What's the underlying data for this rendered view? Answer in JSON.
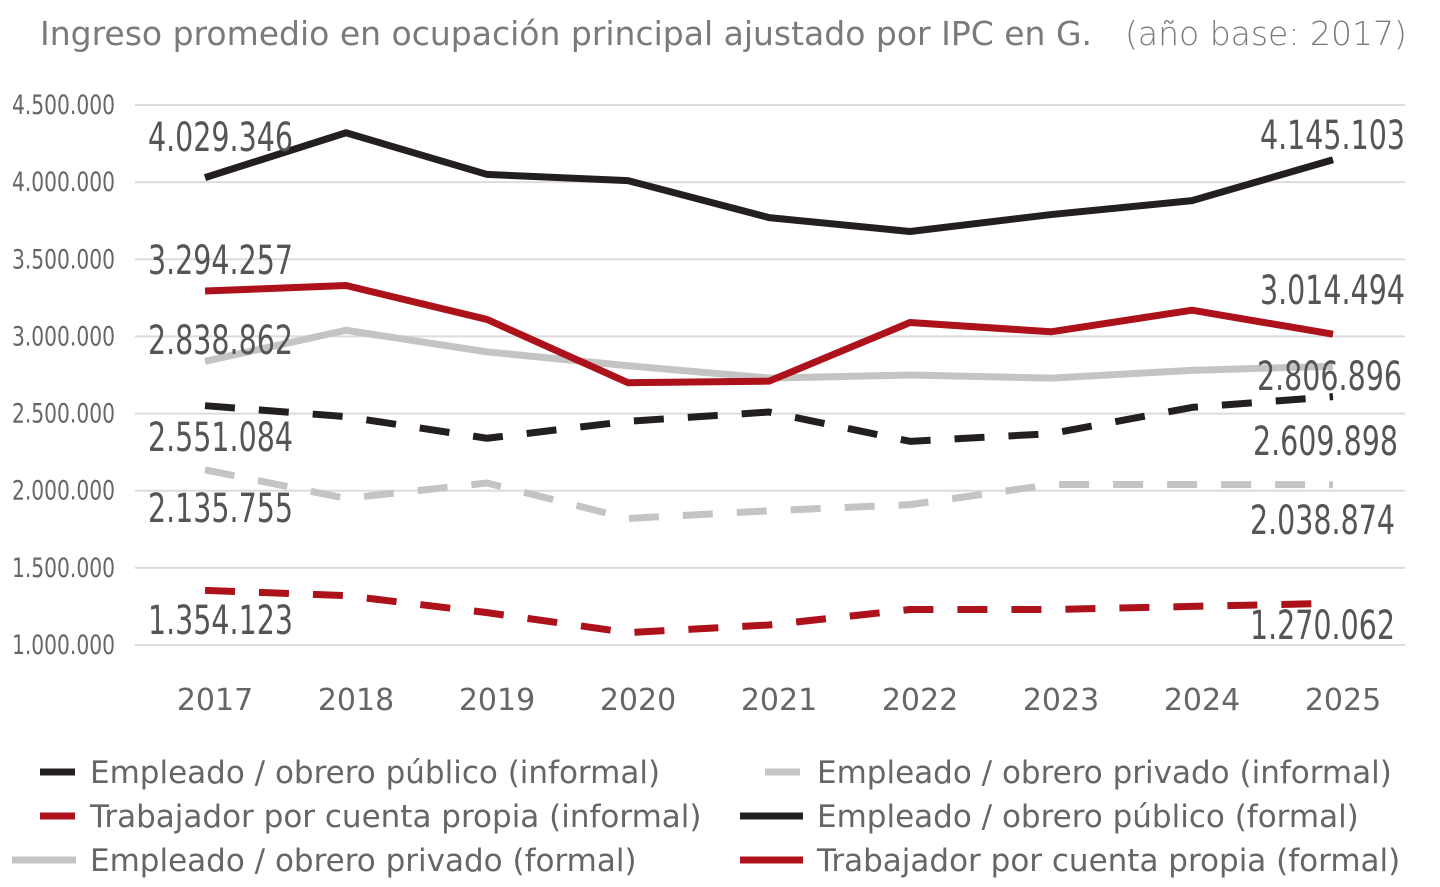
{
  "chart_data": {
    "type": "line",
    "title": "Ingreso promedio en ocupación principal ajustado por IPC en G.",
    "subtitle": "(año base: 2017)",
    "xlabel": "",
    "ylabel": "",
    "x": [
      "2017",
      "2018",
      "2019",
      "2020",
      "2021",
      "2022",
      "2023",
      "2024",
      "2025"
    ],
    "ylim": [
      1000000,
      4500000
    ],
    "yticks": [
      1000000,
      1500000,
      2000000,
      2500000,
      3000000,
      3500000,
      4000000,
      4500000
    ],
    "ytick_labels": [
      "1.000.000",
      "1.500.000",
      "2.000.000",
      "2.500.000",
      "3.000.000",
      "3.500.000",
      "4.000.000",
      "4.500.000"
    ],
    "grid": "horizontal",
    "legend_placement": "bottom",
    "series": [
      {
        "name": "Empleado / obrero público (informal)",
        "color": "#231f20",
        "dashed": true,
        "values": [
          2551084,
          2480000,
          2340000,
          2450000,
          2510000,
          2320000,
          2370000,
          2540000,
          2609898
        ],
        "first_label": "2.551.084",
        "last_label": "2.609.898"
      },
      {
        "name": "Empleado / obrero privado (informal)",
        "color": "#c4c4c4",
        "dashed": true,
        "values": [
          2135755,
          1950000,
          2050000,
          1820000,
          1870000,
          1910000,
          2040000,
          2040000,
          2038874
        ],
        "first_label": "2.135.755",
        "last_label": "2.038.874"
      },
      {
        "name": "Trabajador por cuenta propia (informal)",
        "color": "#ad111a",
        "dashed": true,
        "values": [
          1354123,
          1320000,
          1210000,
          1080000,
          1130000,
          1230000,
          1230000,
          1250000,
          1270062
        ],
        "first_label": "1.354.123",
        "last_label": "1.270.062"
      },
      {
        "name": "Empleado / obrero público (formal)",
        "color": "#231f20",
        "dashed": false,
        "values": [
          4029346,
          4320000,
          4050000,
          4010000,
          3770000,
          3680000,
          3790000,
          3880000,
          4145103
        ],
        "first_label": "4.029.346",
        "last_label": "4.145.103"
      },
      {
        "name": "Empleado / obrero privado (formal)",
        "color": "#c4c4c4",
        "dashed": false,
        "values": [
          2838862,
          3040000,
          2900000,
          2810000,
          2730000,
          2750000,
          2730000,
          2780000,
          2806896
        ],
        "first_label": "2.838.862",
        "last_label": "2.806.896"
      },
      {
        "name": "Trabajador por cuenta propia (formal)",
        "color": "#ad111a",
        "dashed": false,
        "values": [
          3294257,
          3330000,
          3110000,
          2700000,
          2710000,
          3090000,
          3030000,
          3170000,
          3014494
        ],
        "first_label": "3.294.257",
        "last_label": "3.014.494"
      }
    ]
  }
}
